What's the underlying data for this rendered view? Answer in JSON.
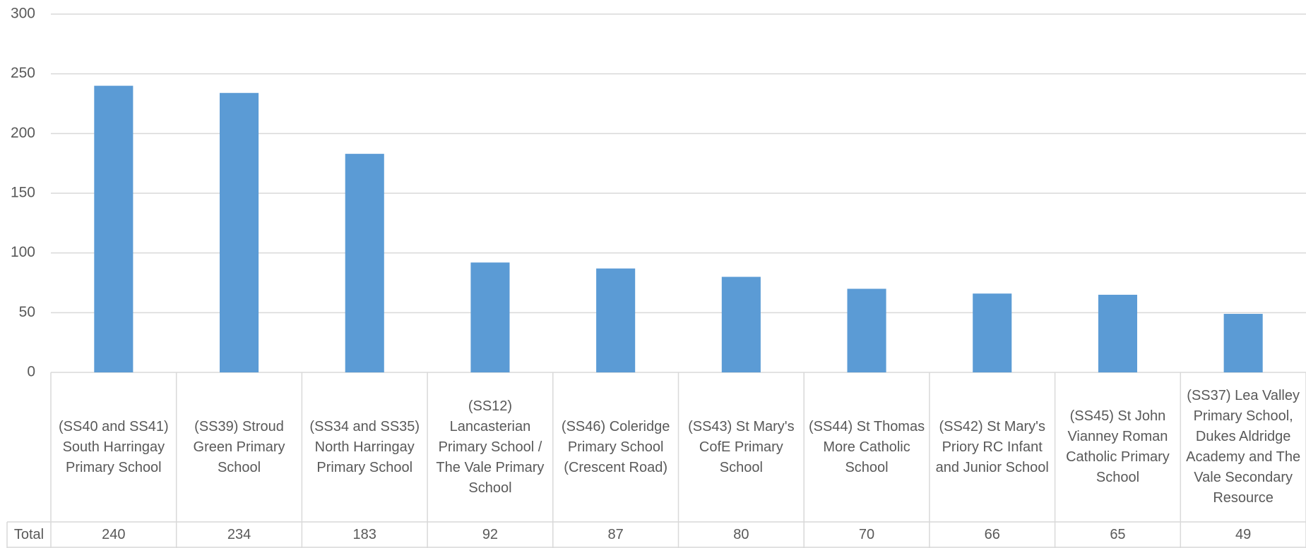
{
  "chart_data": {
    "type": "bar",
    "categories": [
      "(SS40 and SS41) South Harringay Primary School",
      "(SS39) Stroud Green Primary School",
      "(SS34 and SS35) North Harringay Primary School",
      "(SS12) Lancasterian Primary School / The Vale Primary School",
      "(SS46) Coleridge Primary School (Crescent Road)",
      "(SS43) St Mary's CofE Primary School",
      "(SS44) St Thomas More Catholic School",
      "(SS42) St Mary's Priory RC Infant and Junior School",
      "(SS45) St John Vianney Roman Catholic Primary School",
      "(SS37) Lea Valley Primary School, Dukes Aldridge Academy and The Vale Secondary Resource"
    ],
    "series": [
      {
        "name": "Total",
        "color": "#5b9bd5",
        "values": [
          240,
          234,
          183,
          92,
          87,
          80,
          70,
          66,
          65,
          49
        ]
      }
    ],
    "ylim": [
      0,
      300
    ],
    "yticks": [
      0,
      50,
      100,
      150,
      200,
      250,
      300
    ],
    "grid": true
  }
}
